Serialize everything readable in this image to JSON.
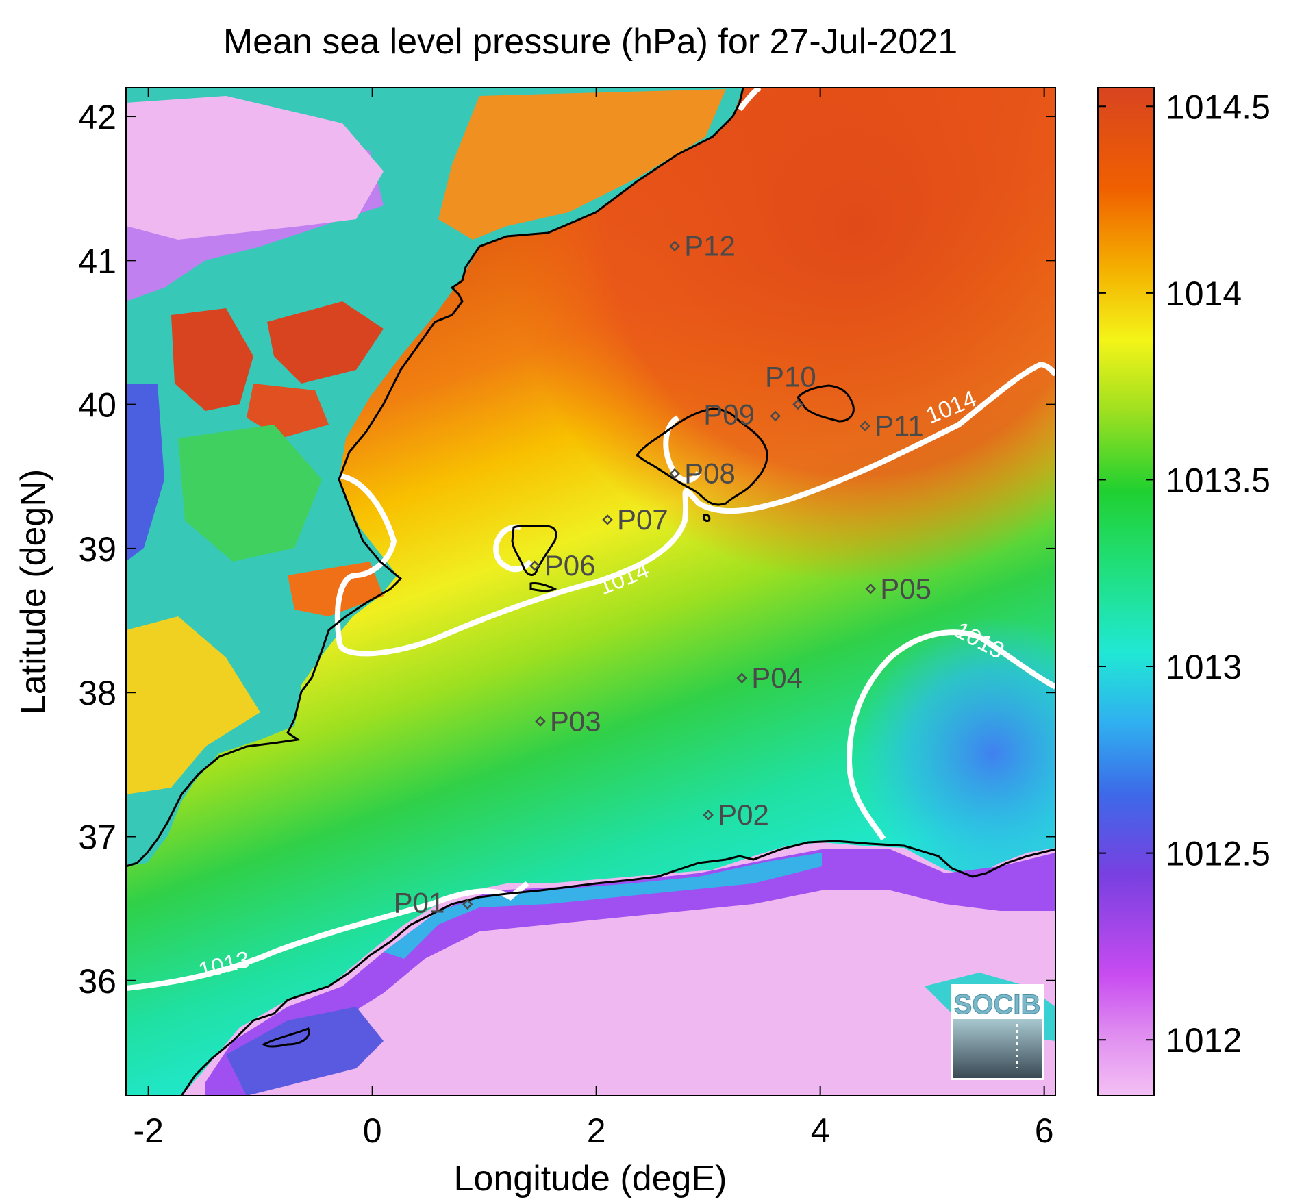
{
  "chart_data": {
    "type": "heatmap",
    "title": "Mean sea level pressure (hPa) for 27-Jul-2021",
    "xlabel": "Longitude (degE)",
    "ylabel": "Latitude (degN)",
    "xlim": [
      -2.2,
      6.1
    ],
    "ylim": [
      35.2,
      42.2
    ],
    "x_ticks": [
      -2,
      0,
      2,
      4,
      6
    ],
    "x_tick_labels": [
      "-2",
      "0",
      "2",
      "4",
      "6"
    ],
    "y_ticks": [
      36,
      37,
      38,
      39,
      40,
      41,
      42
    ],
    "y_tick_labels": [
      "36",
      "37",
      "38",
      "39",
      "40",
      "41",
      "42"
    ],
    "colorbar": {
      "range": [
        1011.85,
        1014.55
      ],
      "ticks": [
        1012,
        1012.5,
        1013,
        1013.5,
        1014,
        1014.5
      ],
      "tick_labels": [
        "1012",
        "1012.5",
        "1013",
        "1013.5",
        "1014",
        "1014.5"
      ],
      "colors": [
        "#f0b6f0",
        "#d040f0",
        "#7040e0",
        "#3080f0",
        "#20e0d0",
        "#20d040",
        "#f0f020",
        "#f0a000",
        "#f05000",
        "#d04020"
      ]
    },
    "contours": [
      {
        "level": 1014,
        "label": "1014"
      },
      {
        "level": 1013,
        "label": "1013"
      }
    ],
    "points": [
      {
        "name": "P01",
        "lon": 0.85,
        "lat": 36.53
      },
      {
        "name": "P02",
        "lon": 3.0,
        "lat": 37.15
      },
      {
        "name": "P03",
        "lon": 1.5,
        "lat": 37.8
      },
      {
        "name": "P04",
        "lon": 3.3,
        "lat": 38.1
      },
      {
        "name": "P05",
        "lon": 4.45,
        "lat": 38.72
      },
      {
        "name": "P06",
        "lon": 1.45,
        "lat": 38.88
      },
      {
        "name": "P07",
        "lon": 2.1,
        "lat": 39.2
      },
      {
        "name": "P08",
        "lon": 2.7,
        "lat": 39.52
      },
      {
        "name": "P09",
        "lon": 3.6,
        "lat": 39.92
      },
      {
        "name": "P10",
        "lon": 3.8,
        "lat": 40.0
      },
      {
        "name": "P11",
        "lon": 4.4,
        "lat": 39.85
      },
      {
        "name": "P12",
        "lon": 2.7,
        "lat": 41.1
      }
    ],
    "logo": "SOCIB"
  }
}
